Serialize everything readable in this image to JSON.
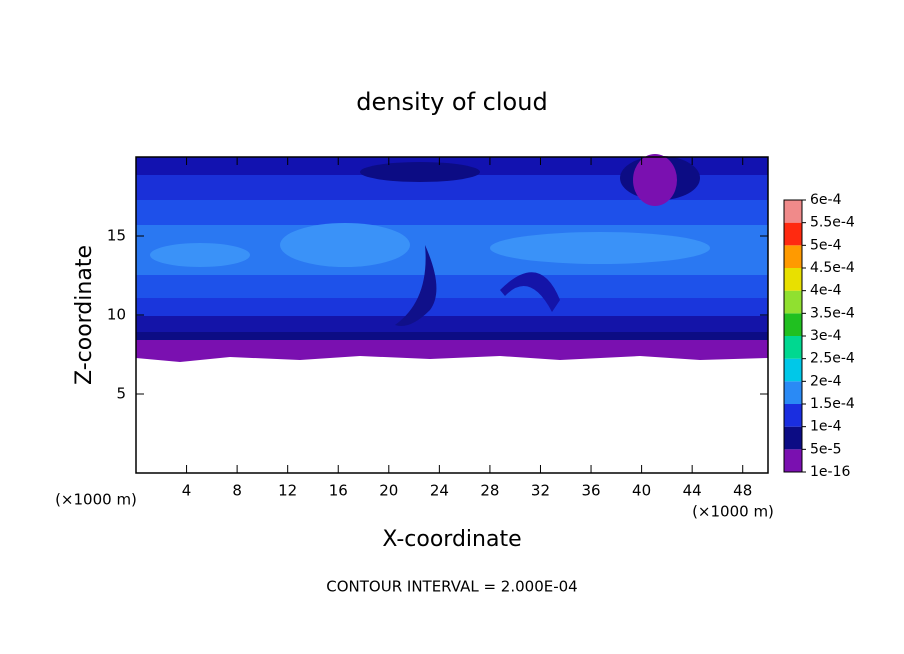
{
  "chart_data": {
    "type": "contour",
    "title": "density of cloud",
    "xlabel": "X-coordinate",
    "ylabel": "Z-coordinate",
    "x_unit_label": "(×1000 m)",
    "y_unit_label": "(×1000 m)",
    "annotation": "CONTOUR INTERVAL = 2.000E-04",
    "xlim": [
      0,
      50
    ],
    "ylim": [
      0,
      20
    ],
    "xticks": [
      4,
      8,
      12,
      16,
      20,
      24,
      28,
      32,
      36,
      40,
      44,
      48
    ],
    "yticks": [
      5,
      10,
      15
    ],
    "colorbar": {
      "levels": [
        {
          "value": 1e-16,
          "label": "1e-16"
        },
        {
          "value": 5e-05,
          "label": "5e-5"
        },
        {
          "value": 0.0001,
          "label": "1e-4"
        },
        {
          "value": 0.00015,
          "label": "1.5e-4"
        },
        {
          "value": 0.0002,
          "label": "2e-4"
        },
        {
          "value": 0.00025,
          "label": "2.5e-4"
        },
        {
          "value": 0.0003,
          "label": "3e-4"
        },
        {
          "value": 0.00035,
          "label": "3.5e-4"
        },
        {
          "value": 0.0004,
          "label": "4e-4"
        },
        {
          "value": 0.00045,
          "label": "4.5e-4"
        },
        {
          "value": 0.0005,
          "label": "5e-4"
        },
        {
          "value": 0.00055,
          "label": "5.5e-4"
        },
        {
          "value": 0.0006,
          "label": "6e-4"
        }
      ],
      "colors": [
        "#7a10b0",
        "#0c0c84",
        "#1a2ee0",
        "#2a8af5",
        "#00c8e8",
        "#00d890",
        "#20c020",
        "#90e030",
        "#e8e000",
        "#ff9a00",
        "#ff2a10",
        "#f08a8a"
      ]
    }
  }
}
